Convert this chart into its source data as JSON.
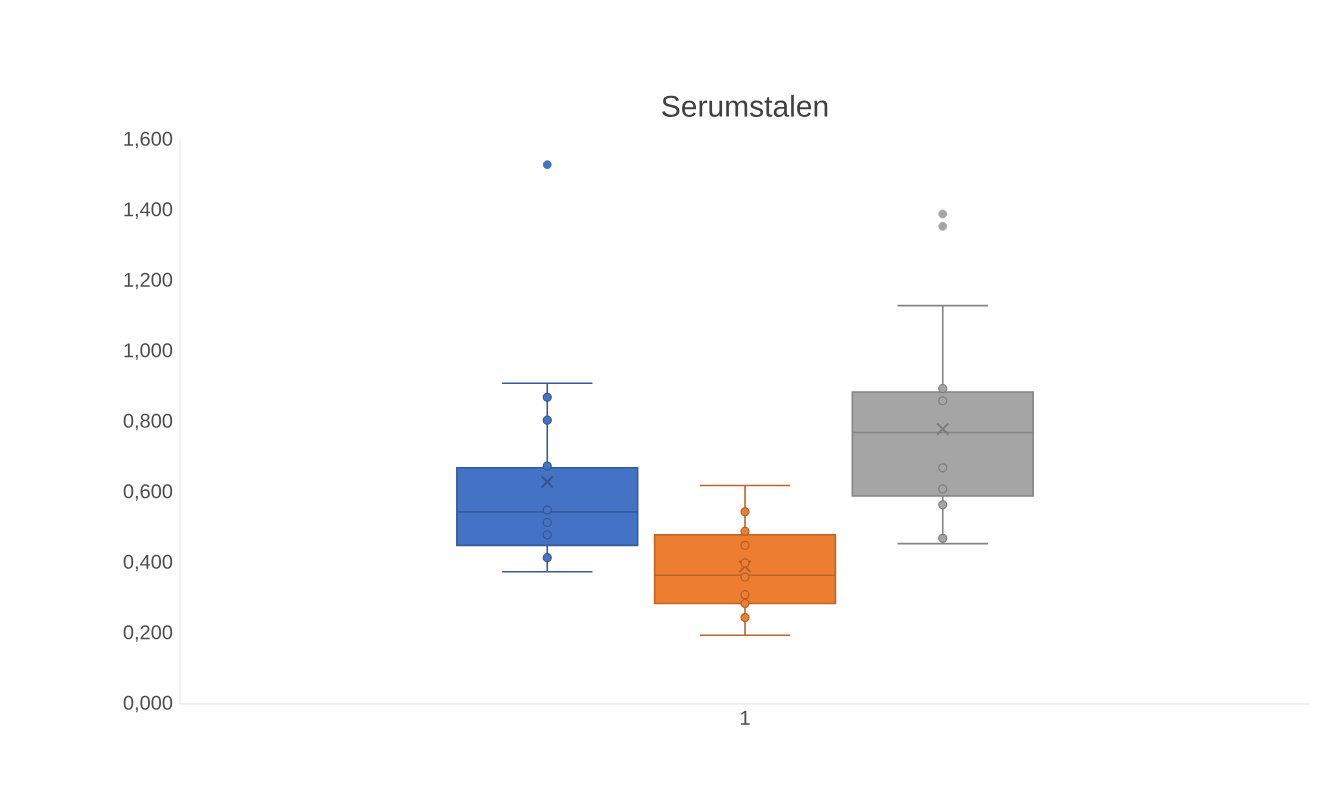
{
  "chart_data": {
    "type": "box",
    "title": "Serumstalen",
    "categories": [
      "1"
    ],
    "ylim": [
      0,
      1.6
    ],
    "yticks": [
      {
        "value": 0,
        "label": "0,000"
      },
      {
        "value": 0.2,
        "label": "0,200"
      },
      {
        "value": 0.4,
        "label": "0,400"
      },
      {
        "value": 0.6,
        "label": "0,600"
      },
      {
        "value": 0.8,
        "label": "0,800"
      },
      {
        "value": 1.0,
        "label": "1,000"
      },
      {
        "value": 1.2,
        "label": "1,200"
      },
      {
        "value": 1.4,
        "label": "1,400"
      },
      {
        "value": 1.6,
        "label": "1,600"
      }
    ],
    "grid": false,
    "marker": "circle",
    "series": [
      {
        "type": "box",
        "color": "#4472c4",
        "boxes": [
          {
            "low": 0.375,
            "q1": 0.45,
            "median": 0.545,
            "q3": 0.67,
            "high": 0.91,
            "mean": 0.63,
            "outliers": [
              1.53
            ]
          }
        ]
      },
      {
        "type": "box",
        "color": "#ed7d31",
        "boxes": [
          {
            "low": 0.195,
            "q1": 0.285,
            "median": 0.365,
            "q3": 0.48,
            "high": 0.62,
            "mean": 0.39
          }
        ]
      },
      {
        "type": "box",
        "color": "#a5a5a5",
        "boxes": [
          {
            "low": 0.455,
            "q1": 0.59,
            "median": 0.77,
            "q3": 0.885,
            "high": 1.13,
            "mean": 0.78,
            "outliers": [
              1.39,
              1.355
            ]
          }
        ]
      },
      {
        "type": "scatter",
        "color": "#4472c4",
        "x": [
          "1",
          "1",
          "1",
          "1",
          "1",
          "1",
          "1"
        ],
        "values": [
          0.87,
          0.805,
          0.675,
          0.55,
          0.515,
          0.48,
          0.415
        ]
      },
      {
        "type": "scatter",
        "color": "#ed7d31",
        "x": [
          "1",
          "1",
          "1",
          "1",
          "1",
          "1",
          "1",
          "1"
        ],
        "values": [
          0.545,
          0.49,
          0.45,
          0.4,
          0.36,
          0.31,
          0.285,
          0.245
        ]
      },
      {
        "type": "scatter",
        "color": "#a5a5a5",
        "x": [
          "1",
          "1",
          "1",
          "1",
          "1",
          "1"
        ],
        "values": [
          0.895,
          0.86,
          0.67,
          0.61,
          0.565,
          0.47
        ]
      }
    ]
  }
}
